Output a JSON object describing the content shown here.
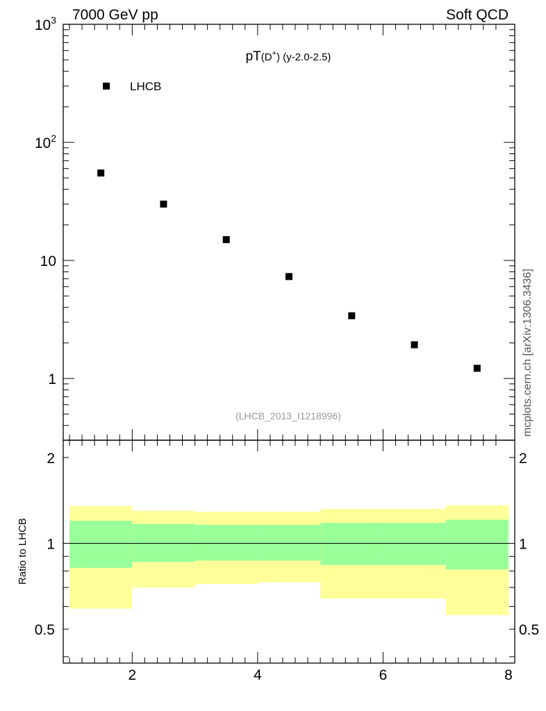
{
  "header": {
    "left": "7000 GeV pp",
    "right": "Soft QCD",
    "side_label": "mcplots.cern.ch [arXiv:1306.3436]"
  },
  "colors": {
    "outer_band": "#ffff99",
    "inner_band": "#99ff99",
    "marker": "#000000"
  },
  "chart_data": [
    {
      "type": "scatter",
      "title": "pT(D⁺) (y-2.0-2.5)",
      "title_parts": {
        "main": "pT",
        "particle": "(D",
        "sup": "+",
        "close": ")",
        "sub": " (y-2.0-2.5)"
      },
      "y_scale": "log",
      "ylim": [
        0.3,
        1000
      ],
      "xlim": [
        0.9,
        8.1
      ],
      "y_ticks": [
        {
          "value": 1,
          "label": "1"
        },
        {
          "value": 10,
          "label": "10"
        },
        {
          "value": 100,
          "label": "10",
          "sup": "2"
        },
        {
          "value": 1000,
          "label": "10",
          "sup": "3"
        }
      ],
      "legend": {
        "label": "LHCB",
        "position": "top-left"
      },
      "reference": "(LHCB_2013_I1218996)",
      "series": [
        {
          "name": "LHCB",
          "marker": "square",
          "x": [
            1.5,
            2.5,
            3.5,
            4.5,
            5.5,
            6.5,
            7.5
          ],
          "y": [
            55,
            30,
            15,
            7.3,
            3.4,
            1.93,
            1.22
          ]
        }
      ]
    },
    {
      "type": "area",
      "ylabel": "Ratio to LHCB",
      "xlim": [
        0.9,
        8.1
      ],
      "ylim": [
        0.38,
        2.3
      ],
      "y_ticks": [
        {
          "value": 0.5,
          "label": "0.5"
        },
        {
          "value": 1,
          "label": "1"
        },
        {
          "value": 2,
          "label": "2"
        }
      ],
      "x_ticks": [
        {
          "value": 2,
          "label": "2"
        },
        {
          "value": 4,
          "label": "4"
        },
        {
          "value": 6,
          "label": "6"
        },
        {
          "value": 8,
          "label": "8"
        }
      ],
      "reference_line": 1,
      "bins": [
        {
          "x0": 1,
          "x1": 2,
          "outer": [
            0.59,
            1.35
          ],
          "inner": [
            0.82,
            1.2
          ]
        },
        {
          "x0": 2,
          "x1": 3,
          "outer": [
            0.7,
            1.3
          ],
          "inner": [
            0.86,
            1.17
          ]
        },
        {
          "x0": 3,
          "x1": 4,
          "outer": [
            0.72,
            1.29
          ],
          "inner": [
            0.87,
            1.16
          ]
        },
        {
          "x0": 4,
          "x1": 5,
          "outer": [
            0.73,
            1.29
          ],
          "inner": [
            0.87,
            1.16
          ]
        },
        {
          "x0": 5,
          "x1": 6,
          "outer": [
            0.64,
            1.32
          ],
          "inner": [
            0.84,
            1.18
          ]
        },
        {
          "x0": 6,
          "x1": 7,
          "outer": [
            0.64,
            1.32
          ],
          "inner": [
            0.84,
            1.18
          ]
        },
        {
          "x0": 7,
          "x1": 8,
          "outer": [
            0.56,
            1.36
          ],
          "inner": [
            0.81,
            1.21
          ]
        }
      ]
    }
  ]
}
